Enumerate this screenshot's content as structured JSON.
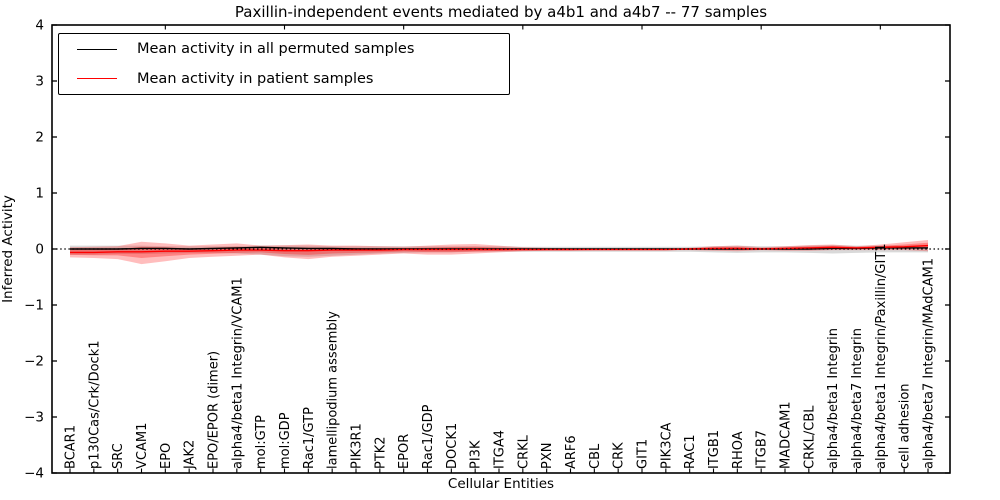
{
  "title": "Paxillin-independent events mediated by a4b1 and a4b7 -- 77 samples",
  "axes": {
    "x_label": "Cellular Entities",
    "y_label": "Inferred Activity",
    "y_ticks": [
      4,
      3,
      2,
      1,
      0,
      -1,
      -2,
      -3,
      -4
    ],
    "ylim": [
      -4,
      4
    ]
  },
  "legend": {
    "items": [
      {
        "label": "Mean activity in all permuted samples",
        "color": "#000000"
      },
      {
        "label": "Mean activity in patient samples",
        "color": "#ff0000"
      }
    ],
    "position": "upper-left"
  },
  "colors": {
    "permuted_line": "#000000",
    "patient_line": "#ff0000",
    "patient_band": "#ff0000",
    "permuted_band": "#aaaaaa",
    "zero_line": "#000000",
    "spine": "#000000"
  },
  "chart_data": {
    "type": "line",
    "title": "Paxillin-independent events mediated by a4b1 and a4b7 -- 77 samples",
    "xlabel": "Cellular Entities",
    "ylabel": "Inferred Activity",
    "ylim": [
      -4,
      4
    ],
    "grid": false,
    "zero_line_style": "dotted",
    "categories": [
      "BCAR1",
      "p130Cas/Crk/Dock1",
      "SRC",
      "VCAM1",
      "EPO",
      "JAK2",
      "EPO/EPOR (dimer)",
      "alpha4/beta1 Integrin/VCAM1",
      "mol:GTP",
      "mol:GDP",
      "Rac1/GTP",
      "lamellipodium assembly",
      "PIK3R1",
      "PTK2",
      "EPOR",
      "Rac1/GDP",
      "DOCK1",
      "PI3K",
      "ITGA4",
      "CRKL",
      "PXN",
      "ARF6",
      "CBL",
      "CRK",
      "GIT1",
      "PIK3CA",
      "RAC1",
      "ITGB1",
      "RHOA",
      "ITGB7",
      "MADCAM1",
      "CRKL/CBL",
      "alpha4/beta1 Integrin",
      "alpha4/beta7 Integrin",
      "alpha4/beta1 Integrin/Paxillin/GIT1",
      "cell adhesion",
      "alpha4/beta7 Integrin/MAdCAM1"
    ],
    "series": [
      {
        "name": "Mean activity in all permuted samples",
        "values": [
          0.0,
          0.0,
          0.0,
          0.01,
          0.01,
          0.0,
          0.01,
          0.02,
          0.03,
          0.02,
          0.01,
          0.01,
          0.0,
          0.0,
          0.0,
          0.0,
          0.0,
          0.0,
          0.0,
          0.0,
          0.0,
          0.0,
          0.0,
          0.0,
          0.0,
          0.0,
          0.0,
          0.0,
          0.0,
          0.0,
          0.0,
          0.0,
          0.01,
          0.01,
          0.02,
          0.02,
          0.02
        ]
      },
      {
        "name": "Mean activity in patient samples",
        "values": [
          -0.06,
          -0.06,
          -0.05,
          -0.05,
          -0.04,
          -0.04,
          -0.03,
          -0.02,
          -0.02,
          -0.03,
          -0.03,
          -0.02,
          -0.02,
          -0.02,
          -0.01,
          -0.01,
          -0.01,
          -0.01,
          -0.01,
          -0.01,
          -0.01,
          -0.01,
          -0.01,
          -0.01,
          -0.01,
          -0.01,
          0.0,
          0.01,
          0.01,
          0.0,
          0.01,
          0.02,
          0.03,
          0.02,
          0.03,
          0.04,
          0.06
        ]
      }
    ],
    "bands": {
      "patient_upper": [
        0.03,
        0.04,
        0.05,
        0.13,
        0.1,
        0.06,
        0.08,
        0.1,
        0.06,
        0.07,
        0.08,
        0.06,
        0.06,
        0.05,
        0.04,
        0.06,
        0.08,
        0.09,
        0.06,
        0.03,
        0.02,
        0.01,
        0.01,
        0.01,
        0.01,
        0.01,
        0.02,
        0.05,
        0.06,
        0.03,
        0.05,
        0.07,
        0.08,
        0.05,
        0.08,
        0.12,
        0.16
      ],
      "patient_lower": [
        -0.15,
        -0.16,
        -0.18,
        -0.27,
        -0.22,
        -0.16,
        -0.14,
        -0.12,
        -0.1,
        -0.15,
        -0.18,
        -0.14,
        -0.12,
        -0.1,
        -0.08,
        -0.1,
        -0.1,
        -0.08,
        -0.06,
        -0.04,
        -0.03,
        -0.03,
        -0.02,
        -0.02,
        -0.02,
        -0.02,
        -0.02,
        -0.03,
        -0.04,
        -0.02,
        -0.03,
        -0.03,
        -0.02,
        -0.02,
        -0.02,
        -0.02,
        -0.04
      ],
      "permuted_upper": [
        0.06,
        0.06,
        0.06,
        0.06,
        0.05,
        0.05,
        0.05,
        0.05,
        0.06,
        0.06,
        0.06,
        0.05,
        0.05,
        0.05,
        0.05,
        0.05,
        0.05,
        0.05,
        0.05,
        0.04,
        0.04,
        0.04,
        0.04,
        0.04,
        0.04,
        0.04,
        0.04,
        0.05,
        0.06,
        0.05,
        0.05,
        0.06,
        0.07,
        0.06,
        0.06,
        0.06,
        0.06
      ],
      "permuted_lower": [
        -0.1,
        -0.1,
        -0.09,
        -0.09,
        -0.08,
        -0.07,
        -0.07,
        -0.08,
        -0.1,
        -0.13,
        -0.14,
        -0.12,
        -0.1,
        -0.08,
        -0.07,
        -0.06,
        -0.06,
        -0.05,
        -0.05,
        -0.05,
        -0.05,
        -0.05,
        -0.05,
        -0.05,
        -0.05,
        -0.05,
        -0.05,
        -0.06,
        -0.07,
        -0.06,
        -0.06,
        -0.07,
        -0.08,
        -0.07,
        -0.06,
        -0.06,
        -0.06
      ]
    }
  }
}
